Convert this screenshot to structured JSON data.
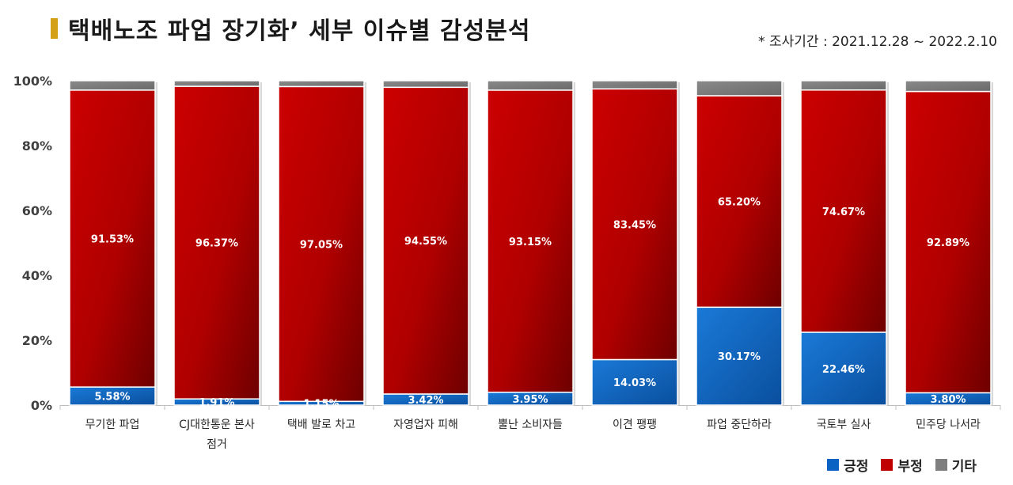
{
  "header": {
    "title": "택배노조 파업 장기화’ 세부 이슈별 감성분석",
    "period": "* 조사기간 : 2021.12.28 ~ 2022.2.10"
  },
  "colors": {
    "positive": "#0a63c2",
    "negative": "#c00000",
    "other": "#7f7f7f",
    "title_accent": "#d4a017"
  },
  "chart_data": {
    "type": "bar",
    "stacked": true,
    "normalized": true,
    "categories": [
      "무기한 파업",
      "CJ대한통운 본사 점거",
      "택배 발로 차고",
      "자영업자 피해",
      "뿔난 소비자들",
      "이견 팽팽",
      "파업 중단하라",
      "국토부 실사",
      "민주당 나서라"
    ],
    "series": [
      {
        "name": "긍정",
        "values": [
          5.58,
          1.91,
          1.15,
          3.42,
          3.95,
          14.03,
          30.17,
          22.46,
          3.8
        ],
        "labels": [
          "5.58%",
          "1.91%",
          "1.15%",
          "3.42%",
          "3.95%",
          "14.03%",
          "30.17%",
          "22.46%",
          "3.80%"
        ]
      },
      {
        "name": "부정",
        "values": [
          91.53,
          96.37,
          97.05,
          94.55,
          93.15,
          83.45,
          65.2,
          74.67,
          92.89
        ],
        "labels": [
          "91.53%",
          "96.37%",
          "97.05%",
          "94.55%",
          "93.15%",
          "83.45%",
          "65.20%",
          "74.67%",
          "92.89%"
        ]
      },
      {
        "name": "기타",
        "values": [
          2.89,
          1.72,
          1.8,
          2.03,
          2.9,
          2.52,
          4.63,
          2.87,
          3.31
        ]
      }
    ],
    "yticks": [
      "0%",
      "20%",
      "40%",
      "60%",
      "80%",
      "100%"
    ],
    "ylim": [
      0,
      100
    ],
    "legend_position": "bottom-right"
  }
}
